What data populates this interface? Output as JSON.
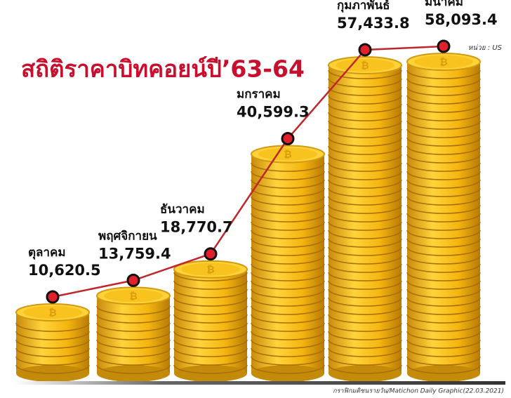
{
  "chart_data": {
    "type": "line",
    "title": "สถิติราคาบิทคอยน์ปี’63-64",
    "unit": "หน่วย : US",
    "source": "กราฟิกมติชนรายวัน/Matichon Daily Graphic(22.03.2021)",
    "categories": [
      "ตุลาคม",
      "พฤศจิกายน",
      "ธันวาคม",
      "มกราคม",
      "กุมภาพันธ์",
      "มีนาคม"
    ],
    "values": [
      10620.5,
      13759.4,
      18770.7,
      40599.3,
      57433.8,
      58093.4
    ],
    "value_labels": [
      "10,620.5",
      "13,759.4",
      "18,770.7",
      "40,599.3",
      "57,433.8",
      "58,093.4"
    ],
    "color": "#c0272d"
  }
}
